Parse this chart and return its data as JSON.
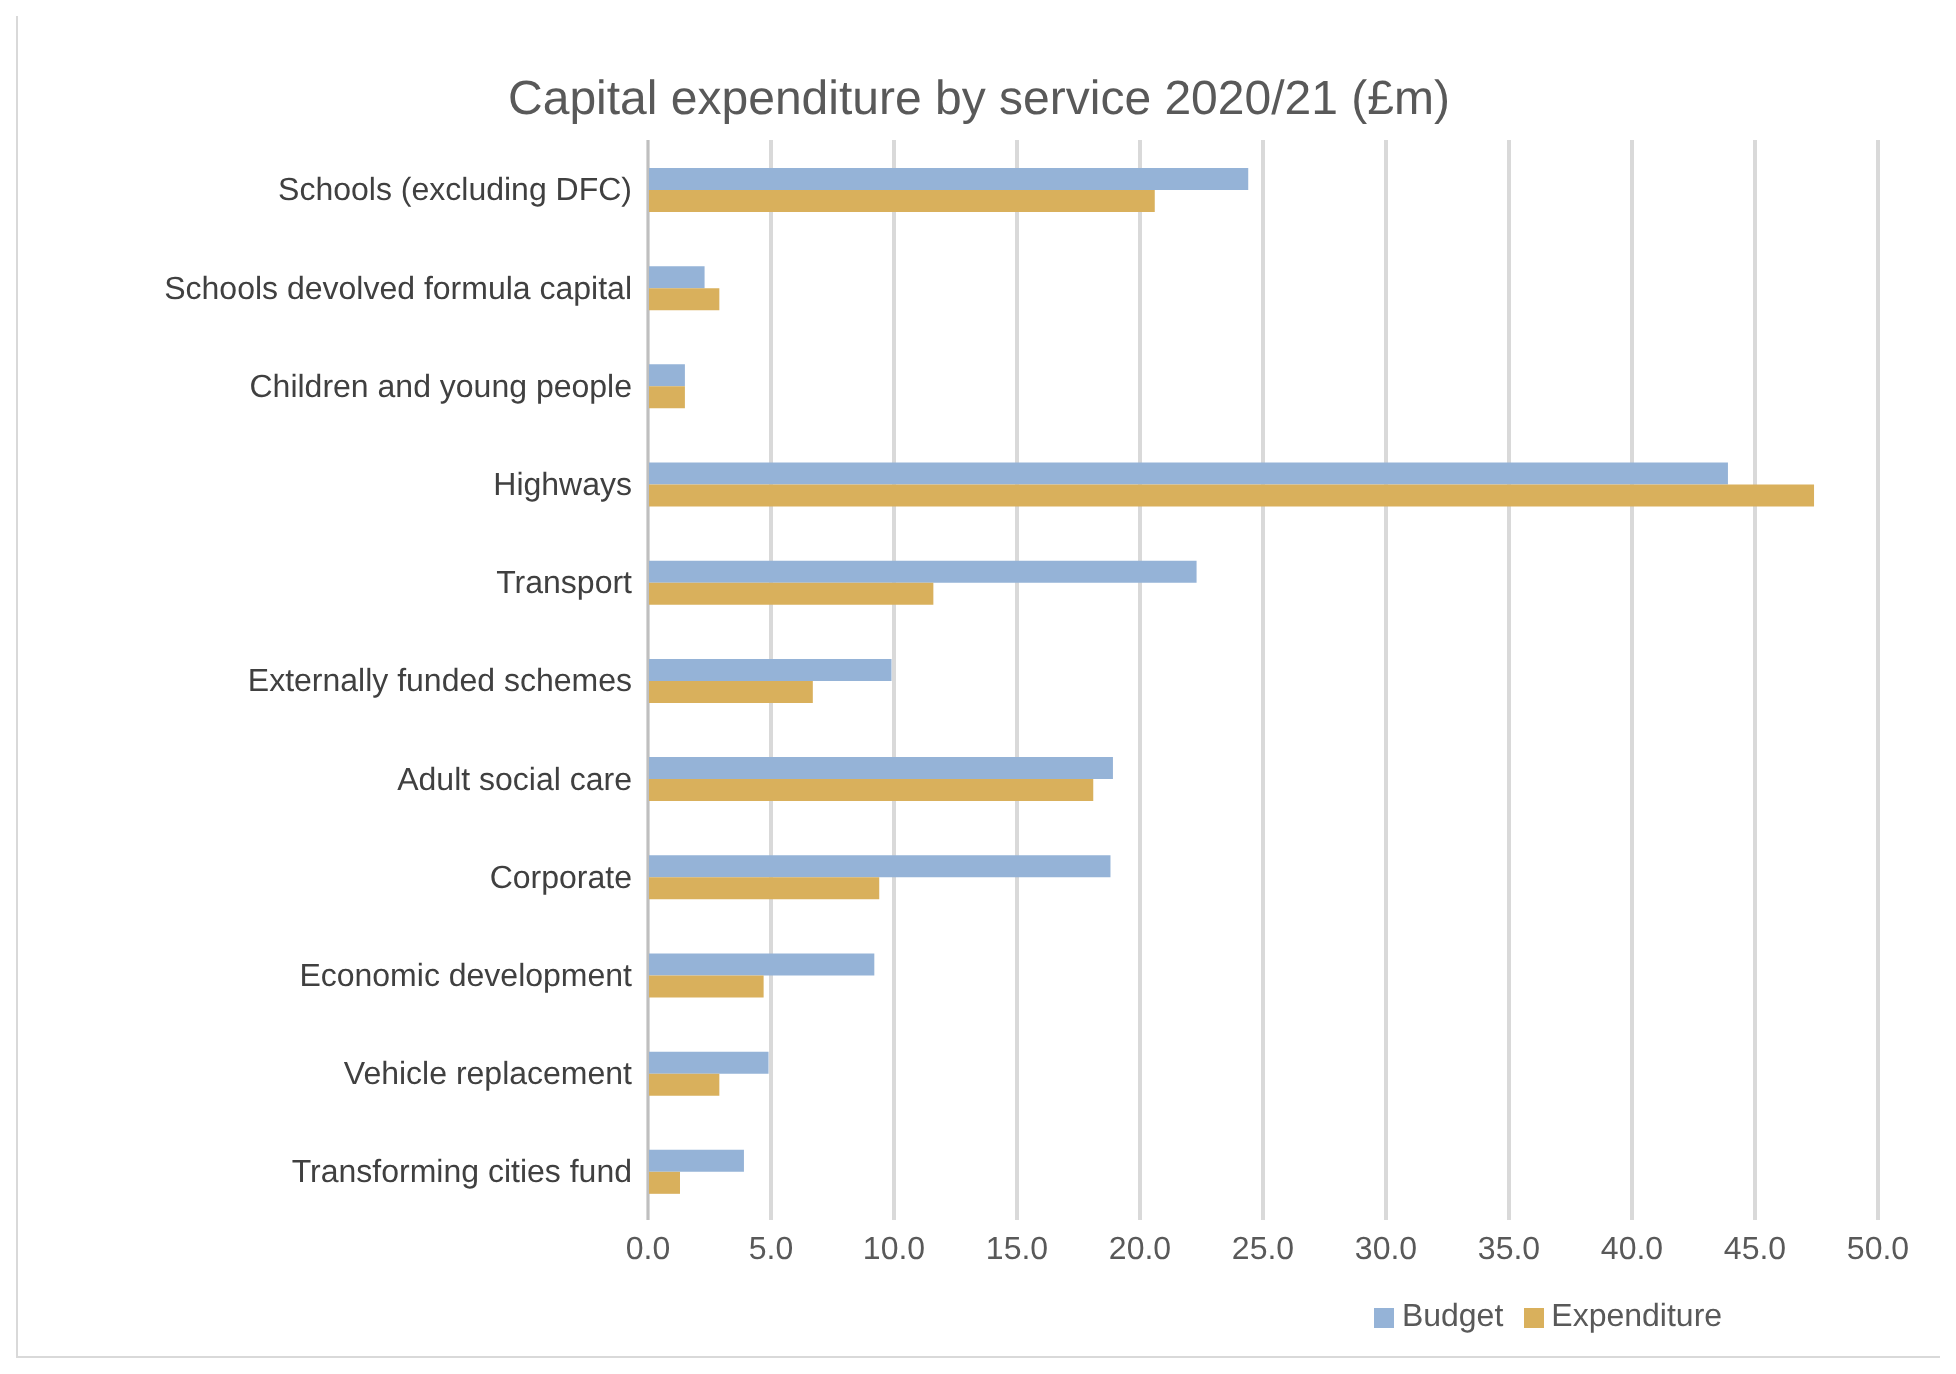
{
  "chart_data": {
    "type": "bar",
    "orientation": "horizontal",
    "title": "Capital expenditure by service 2020/21 (£m)",
    "categories": [
      "Schools (excluding DFC)",
      "Schools devolved formula capital",
      "Children and young people",
      "Highways",
      "Transport",
      "Externally funded schemes",
      "Adult social care",
      "Corporate",
      "Economic development",
      "Vehicle replacement",
      "Transforming cities fund"
    ],
    "series": [
      {
        "name": "Budget",
        "color": "#95b3d7",
        "values": [
          24.4,
          2.3,
          1.5,
          43.9,
          22.3,
          9.9,
          18.9,
          18.8,
          9.2,
          4.9,
          3.9
        ]
      },
      {
        "name": "Expenditure",
        "color": "#d9b05c",
        "values": [
          20.6,
          2.9,
          1.5,
          47.4,
          11.6,
          6.7,
          18.1,
          9.4,
          4.7,
          2.9,
          1.3
        ]
      }
    ],
    "xlim": [
      0,
      50
    ],
    "xticks": [
      {
        "value": 0,
        "label": "0.0"
      },
      {
        "value": 5,
        "label": "5.0"
      },
      {
        "value": 10,
        "label": "10.0"
      },
      {
        "value": 15,
        "label": "15.0"
      },
      {
        "value": 20,
        "label": "20.0"
      },
      {
        "value": 25,
        "label": "25.0"
      },
      {
        "value": 30,
        "label": "30.0"
      },
      {
        "value": 35,
        "label": "35.0"
      },
      {
        "value": 40,
        "label": "40.0"
      },
      {
        "value": 45,
        "label": "45.0"
      },
      {
        "value": 50,
        "label": "50.0"
      }
    ],
    "grid": "x",
    "legend": "bottom"
  }
}
